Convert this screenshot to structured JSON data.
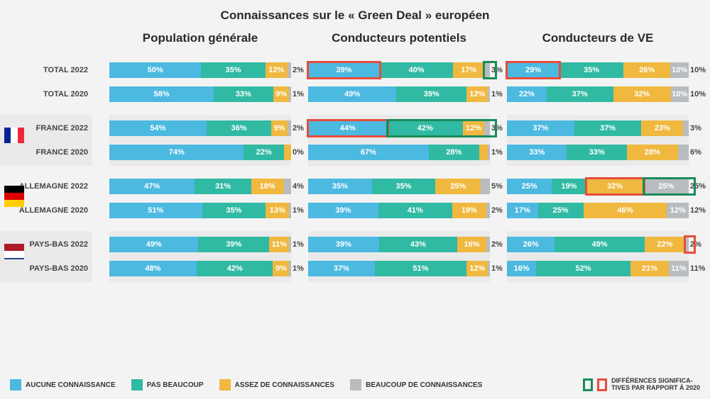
{
  "title": "Connaissances sur le « Green Deal » européen",
  "colors": {
    "c1": "#4bb9e0",
    "c2": "#30b9a3",
    "c3": "#f0b83f",
    "c4": "#b8bcbf",
    "hi_green": "#1a8c5a",
    "hi_red": "#e74c3c",
    "bg_alt": "#eaeaea"
  },
  "column_headers": [
    "Population générale",
    "Conducteurs potentiels",
    "Conducteurs de VE"
  ],
  "legend": {
    "items": [
      {
        "color": "#4bb9e0",
        "label": "AUCUNE CONNAISSANCE"
      },
      {
        "color": "#30b9a3",
        "label": "PAS BEAUCOUP"
      },
      {
        "color": "#f0b83f",
        "label": "ASSEZ DE CONNAISSANCES"
      },
      {
        "color": "#b8bcbf",
        "label": "BEAUCOUP DE CONNAISSANCES"
      }
    ],
    "diff_label": "DIFFÉRENCES SIGNIFICA-\nTIVES PAR RAPPORT À 2020"
  },
  "groups": [
    {
      "alt": false,
      "flag": null,
      "rows": [
        {
          "label": "TOTAL 2022",
          "bars": [
            {
              "v": [
                50,
                35,
                12,
                2
              ],
              "hi": []
            },
            {
              "v": [
                39,
                40,
                17,
                3
              ],
              "hi": [
                {
                  "seg": 0,
                  "c": "red"
                },
                {
                  "seg": 3,
                  "c": "green",
                  "rightExtend": true
                }
              ]
            },
            {
              "v": [
                29,
                35,
                26,
                10
              ],
              "hi": [
                {
                  "seg": 0,
                  "c": "red"
                }
              ]
            }
          ]
        },
        {
          "label": "TOTAL 2020",
          "bars": [
            {
              "v": [
                58,
                33,
                9,
                1
              ],
              "hi": []
            },
            {
              "v": [
                49,
                39,
                12,
                1
              ],
              "hi": []
            },
            {
              "v": [
                22,
                37,
                32,
                10
              ],
              "hi": []
            }
          ]
        }
      ]
    },
    {
      "alt": true,
      "flag": {
        "type": "v",
        "c": [
          "#002395",
          "#ffffff",
          "#ed2939"
        ]
      },
      "rows": [
        {
          "label": "FRANCE 2022",
          "bars": [
            {
              "v": [
                54,
                36,
                9,
                2
              ],
              "hi": []
            },
            {
              "v": [
                44,
                42,
                12,
                3
              ],
              "hi": [
                {
                  "seg": 0,
                  "c": "red"
                },
                {
                  "seg": 1,
                  "c": "green",
                  "extend": 2,
                  "rightExtend": true
                }
              ]
            },
            {
              "v": [
                37,
                37,
                23,
                3
              ],
              "hi": []
            }
          ]
        },
        {
          "label": "FRANCE 2020",
          "bars": [
            {
              "v": [
                74,
                22,
                4,
                0
              ],
              "hi": []
            },
            {
              "v": [
                67,
                28,
                5,
                1
              ],
              "hi": []
            },
            {
              "v": [
                33,
                33,
                28,
                6
              ],
              "hi": []
            }
          ]
        }
      ]
    },
    {
      "alt": false,
      "flag": {
        "type": "h",
        "c": [
          "#000000",
          "#dd0000",
          "#ffce00"
        ]
      },
      "rows": [
        {
          "label": "ALLEMAGNE 2022",
          "bars": [
            {
              "v": [
                47,
                31,
                18,
                4
              ],
              "hi": []
            },
            {
              "v": [
                35,
                35,
                25,
                5
              ],
              "hi": []
            },
            {
              "v": [
                25,
                19,
                32,
                25
              ],
              "hi": [
                {
                  "seg": 2,
                  "c": "red"
                },
                {
                  "seg": 3,
                  "c": "green",
                  "rightExtend": true
                }
              ]
            }
          ]
        },
        {
          "label": "ALLEMAGNE 2020",
          "bars": [
            {
              "v": [
                51,
                35,
                13,
                1
              ],
              "hi": []
            },
            {
              "v": [
                39,
                41,
                19,
                2
              ],
              "hi": []
            },
            {
              "v": [
                17,
                25,
                46,
                12
              ],
              "hi": []
            }
          ]
        }
      ]
    },
    {
      "alt": true,
      "flag": {
        "type": "h",
        "c": [
          "#ae1c28",
          "#ffffff",
          "#21468b"
        ]
      },
      "rows": [
        {
          "label": "PAYS-BAS 2022",
          "bars": [
            {
              "v": [
                49,
                39,
                11,
                1
              ],
              "hi": []
            },
            {
              "v": [
                39,
                43,
                16,
                2
              ],
              "hi": []
            },
            {
              "v": [
                26,
                49,
                22,
                2
              ],
              "hi": [
                {
                  "seg": 3,
                  "c": "red",
                  "rightExtend": true
                }
              ]
            }
          ]
        },
        {
          "label": "PAYS-BAS 2020",
          "bars": [
            {
              "v": [
                48,
                42,
                9,
                1
              ],
              "hi": []
            },
            {
              "v": [
                37,
                51,
                12,
                1
              ],
              "hi": []
            },
            {
              "v": [
                16,
                52,
                21,
                11
              ],
              "hi": []
            }
          ]
        }
      ]
    }
  ]
}
